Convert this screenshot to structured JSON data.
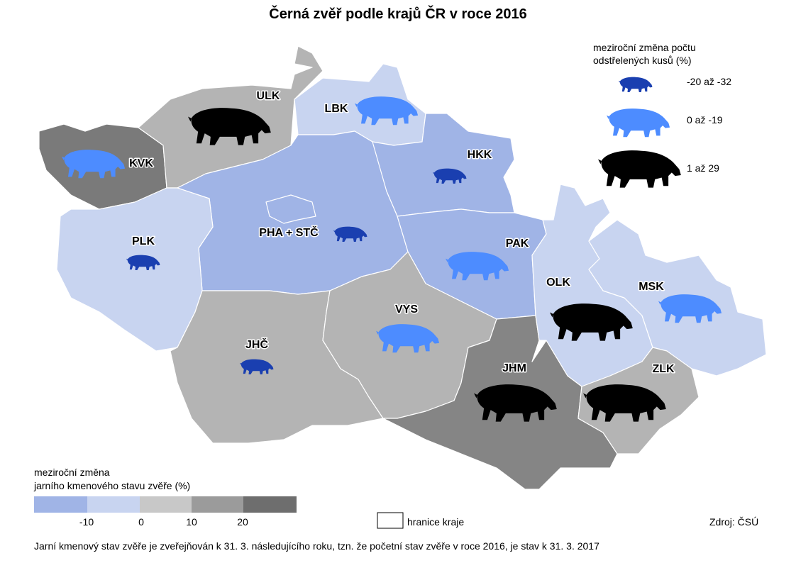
{
  "title": "Černá zvěř podle krajů ČR v roce 2016",
  "regions": [
    {
      "label": "ULK"
    },
    {
      "label": "LBK"
    },
    {
      "label": "KVK"
    },
    {
      "label": "HKK"
    },
    {
      "label": "PLK"
    },
    {
      "label": "PHA + STČ"
    },
    {
      "label": "PAK"
    },
    {
      "label": "OLK"
    },
    {
      "label": "MSK"
    },
    {
      "label": "VYS"
    },
    {
      "label": "JHČ"
    },
    {
      "label": "JHM"
    },
    {
      "label": "ZLK"
    }
  ],
  "boar_legend": {
    "title": [
      "meziroční změna počtu",
      "odstřelených kusů (%)"
    ],
    "items": [
      "-20 až -32",
      "0 až -19",
      "1 až 29"
    ]
  },
  "color_legend": {
    "title": [
      "meziroční změna",
      "jarního kmenového stavu zvěře (%)"
    ],
    "ticks": [
      -10,
      0,
      10,
      20
    ]
  },
  "border_legend": "hranice kraje",
  "source": "Zdroj: ČSÚ",
  "footnote": "Jarní kmenový stav zvěře je zveřejňován k 31. 3. následujícího roku, tzn. že početní stav zvěře v roce 2016, je stav k 31. 3. 2017"
}
